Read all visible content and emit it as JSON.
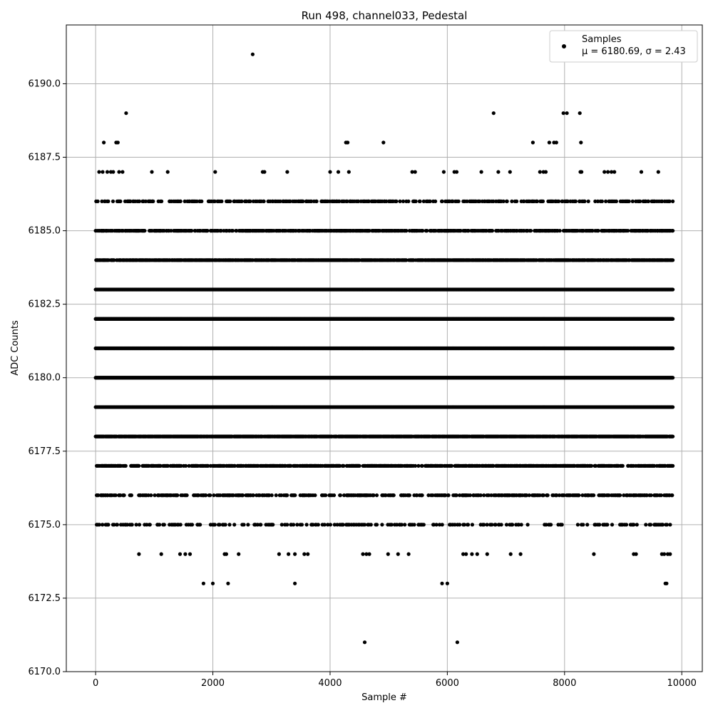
{
  "chart_data": {
    "type": "scatter",
    "title": "Run 498, channel033, Pedestal",
    "xlabel": "Sample #",
    "ylabel": "ADC Counts",
    "xlim": [
      -500,
      10350
    ],
    "ylim": [
      6170.0,
      6192.0
    ],
    "xticks": [
      0,
      2000,
      4000,
      6000,
      8000,
      10000
    ],
    "xtick_labels": [
      "0",
      "2000",
      "4000",
      "6000",
      "8000",
      "10000"
    ],
    "yticks": [
      6170.0,
      6172.5,
      6175.0,
      6177.5,
      6180.0,
      6182.5,
      6185.0,
      6187.5,
      6190.0
    ],
    "ytick_labels": [
      "6170.0",
      "6172.5",
      "6175.0",
      "6177.5",
      "6180.0",
      "6182.5",
      "6185.0",
      "6187.5",
      "6190.0"
    ],
    "grid": true,
    "legend": {
      "position": "top-right",
      "line1": "Samples",
      "line2": "μ = 6180.69, σ = 2.43"
    },
    "marker_color": "#000000",
    "series": [
      {
        "name": "Samples",
        "points": [
          [
            2680,
            6191
          ],
          [
            520,
            6189
          ],
          [
            6790,
            6189
          ],
          [
            7980,
            6189
          ],
          [
            8040,
            6189
          ],
          [
            8260,
            6189
          ],
          [
            140,
            6188
          ],
          [
            350,
            6188
          ],
          [
            380,
            6188
          ],
          [
            4270,
            6188
          ],
          [
            4300,
            6188
          ],
          [
            4910,
            6188
          ],
          [
            7460,
            6188
          ],
          [
            7740,
            6188
          ],
          [
            7820,
            6188
          ],
          [
            7860,
            6188
          ],
          [
            8280,
            6188
          ],
          [
            60,
            6187
          ],
          [
            120,
            6187
          ],
          [
            200,
            6187
          ],
          [
            260,
            6187
          ],
          [
            300,
            6187
          ],
          [
            400,
            6187
          ],
          [
            460,
            6187
          ],
          [
            960,
            6187
          ],
          [
            1230,
            6187
          ],
          [
            2040,
            6187
          ],
          [
            2850,
            6187
          ],
          [
            2880,
            6187
          ],
          [
            3270,
            6187
          ],
          [
            4000,
            6187
          ],
          [
            4140,
            6187
          ],
          [
            4320,
            6187
          ],
          [
            5400,
            6187
          ],
          [
            5450,
            6187
          ],
          [
            5940,
            6187
          ],
          [
            6120,
            6187
          ],
          [
            6160,
            6187
          ],
          [
            6580,
            6187
          ],
          [
            6870,
            6187
          ],
          [
            7070,
            6187
          ],
          [
            7580,
            6187
          ],
          [
            7640,
            6187
          ],
          [
            7680,
            6187
          ],
          [
            8270,
            6187
          ],
          [
            8290,
            6187
          ],
          [
            8680,
            6187
          ],
          [
            8740,
            6187
          ],
          [
            8800,
            6187
          ],
          [
            8850,
            6187
          ],
          [
            9310,
            6187
          ],
          [
            9600,
            6187
          ],
          [
            6170,
            6171
          ],
          [
            4590,
            6171
          ],
          [
            1840,
            6173
          ],
          [
            2000,
            6173
          ],
          [
            2260,
            6173
          ],
          [
            3400,
            6173
          ],
          [
            5910,
            6173
          ],
          [
            6000,
            6173
          ],
          [
            9720,
            6173
          ],
          [
            9740,
            6173
          ],
          [
            740,
            6174
          ],
          [
            1120,
            6174
          ],
          [
            1440,
            6174
          ],
          [
            1530,
            6174
          ],
          [
            1610,
            6174
          ],
          [
            2200,
            6174
          ],
          [
            2230,
            6174
          ],
          [
            2440,
            6174
          ],
          [
            3130,
            6174
          ],
          [
            3290,
            6174
          ],
          [
            3400,
            6174
          ],
          [
            3560,
            6174
          ],
          [
            3620,
            6174
          ],
          [
            4560,
            6174
          ],
          [
            4620,
            6174
          ],
          [
            4670,
            6174
          ],
          [
            4990,
            6174
          ],
          [
            5160,
            6174
          ],
          [
            5340,
            6174
          ],
          [
            6270,
            6174
          ],
          [
            6320,
            6174
          ],
          [
            6420,
            6174
          ],
          [
            6510,
            6174
          ],
          [
            6680,
            6174
          ],
          [
            7080,
            6174
          ],
          [
            7250,
            6174
          ],
          [
            8500,
            6174
          ],
          [
            9180,
            6174
          ],
          [
            9220,
            6174
          ],
          [
            9660,
            6174
          ],
          [
            9700,
            6174
          ],
          [
            9760,
            6174
          ],
          [
            9800,
            6174
          ]
        ]
      }
    ],
    "dense_rows": [
      {
        "y": 6186,
        "density": 0.35
      },
      {
        "y": 6185,
        "density": 0.55
      },
      {
        "y": 6184,
        "density": 0.8
      },
      {
        "y": 6183,
        "density": 1.0
      },
      {
        "y": 6182,
        "density": 1.0
      },
      {
        "y": 6181,
        "density": 1.0
      },
      {
        "y": 6180,
        "density": 1.0
      },
      {
        "y": 6179,
        "density": 1.0
      },
      {
        "y": 6178,
        "density": 0.9
      },
      {
        "y": 6177,
        "density": 0.55
      },
      {
        "y": 6176,
        "density": 0.35
      },
      {
        "y": 6175,
        "density": 0.18
      }
    ],
    "sample_range": [
      0,
      9850
    ]
  }
}
